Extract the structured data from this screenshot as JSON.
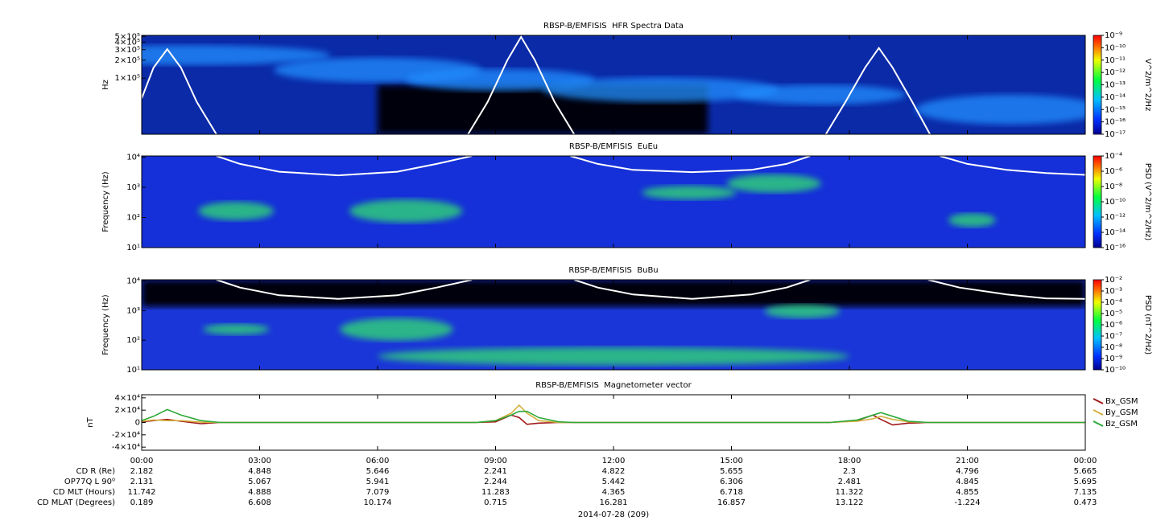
{
  "chart_data": [
    {
      "type": "spectrogram",
      "title": "RBSP-B/EMFISIS  HFR Spectra Data",
      "ylabel": "Hz",
      "ylog": true,
      "xlim": [
        0,
        24
      ],
      "ylim": [
        11500,
        520000
      ],
      "yticks": [
        {
          "value": 100000,
          "label": "1×10⁵"
        },
        {
          "value": 200000,
          "label": "2×10⁵"
        },
        {
          "value": 300000,
          "label": "3×10⁵"
        },
        {
          "value": 400000,
          "label": "4×10⁵"
        },
        {
          "value": 500000,
          "label": "5×10⁵"
        }
      ],
      "zlabel": "V^2/m^2/Hz",
      "zlim": [
        1e-17,
        1e-09
      ],
      "zticks": [
        {
          "value": 1e-09,
          "label": "10⁻⁹"
        },
        {
          "value": 1e-10,
          "label": "10⁻¹⁰"
        },
        {
          "value": 1e-11,
          "label": "10⁻¹¹"
        },
        {
          "value": 1e-12,
          "label": "10⁻¹²"
        },
        {
          "value": 1e-13,
          "label": "10⁻¹³"
        },
        {
          "value": 1e-14,
          "label": "10⁻¹⁴"
        },
        {
          "value": 1e-15,
          "label": "10⁻¹⁵"
        },
        {
          "value": 1e-16,
          "label": "10⁻¹⁶"
        },
        {
          "value": 1e-17,
          "label": "10⁻¹⁷"
        }
      ],
      "curve": {
        "color": "#ffffff",
        "x": [
          0,
          0.3,
          0.65,
          1.0,
          1.4,
          1.9,
          4,
          8.3,
          8.8,
          9.3,
          9.65,
          10.0,
          10.5,
          11.0,
          14,
          17.4,
          17.9,
          18.4,
          18.75,
          19.1,
          19.6,
          20.05
        ],
        "values": [
          46000,
          150000,
          305000,
          150000,
          40000,
          11500,
          null,
          11500,
          40000,
          200000,
          490000,
          200000,
          40000,
          11500,
          null,
          11500,
          40000,
          150000,
          320000,
          150000,
          40000,
          11500
        ]
      }
    },
    {
      "type": "spectrogram",
      "title": "RBSP-B/EMFISIS  EuEu",
      "ylabel": "Frequency (Hz)",
      "ylog": true,
      "xlim": [
        0,
        24
      ],
      "ylim": [
        10,
        11000
      ],
      "yticks": [
        {
          "value": 10,
          "label": "10¹"
        },
        {
          "value": 100,
          "label": "10²"
        },
        {
          "value": 1000,
          "label": "10³"
        },
        {
          "value": 10000,
          "label": "10⁴"
        }
      ],
      "zlabel": "PSD (V^2/m^2/Hz)",
      "zlim": [
        1e-16,
        0.0001
      ],
      "zticks": [
        {
          "value": 0.0001,
          "label": "10⁻⁴"
        },
        {
          "value": 1e-06,
          "label": "10⁻⁶"
        },
        {
          "value": 1e-08,
          "label": "10⁻⁸"
        },
        {
          "value": 1e-10,
          "label": "10⁻¹⁰"
        },
        {
          "value": 1e-12,
          "label": "10⁻¹²"
        },
        {
          "value": 1e-14,
          "label": "10⁻¹⁴"
        },
        {
          "value": 1e-16,
          "label": "10⁻¹⁶"
        }
      ],
      "curve": {
        "color": "#ffffff",
        "x": [
          1.9,
          2.5,
          3.5,
          5,
          6.5,
          7.5,
          8.4,
          9.5,
          10.9,
          11.6,
          12.5,
          14,
          15.5,
          16.4,
          17.0,
          19,
          20.3,
          21,
          22,
          23,
          24
        ],
        "values": [
          11000,
          6000,
          3300,
          2500,
          3300,
          6000,
          11000,
          null,
          11000,
          6000,
          3800,
          3200,
          3800,
          6000,
          11000,
          null,
          11000,
          6000,
          3800,
          3000,
          2600
        ]
      }
    },
    {
      "type": "spectrogram",
      "title": "RBSP-B/EMFISIS  BuBu",
      "ylabel": "Frequency (Hz)",
      "ylog": true,
      "xlim": [
        0,
        24
      ],
      "ylim": [
        10,
        11000
      ],
      "yticks": [
        {
          "value": 10,
          "label": "10¹"
        },
        {
          "value": 100,
          "label": "10²"
        },
        {
          "value": 1000,
          "label": "10³"
        },
        {
          "value": 10000,
          "label": "10⁴"
        }
      ],
      "zlabel": "PSD (nT^2/Hz)",
      "zlim": [
        1e-10,
        0.01
      ],
      "zticks": [
        {
          "value": 0.01,
          "label": "10⁻²"
        },
        {
          "value": 0.001,
          "label": "10⁻³"
        },
        {
          "value": 0.0001,
          "label": "10⁻⁴"
        },
        {
          "value": 1e-05,
          "label": "10⁻⁵"
        },
        {
          "value": 1e-06,
          "label": "10⁻⁶"
        },
        {
          "value": 1e-07,
          "label": "10⁻⁷"
        },
        {
          "value": 1e-08,
          "label": "10⁻⁸"
        },
        {
          "value": 1e-09,
          "label": "10⁻⁹"
        },
        {
          "value": 1e-10,
          "label": "10⁻¹⁰"
        }
      ],
      "curve": {
        "color": "#ffffff",
        "x": [
          1.9,
          2.5,
          3.5,
          5,
          6.5,
          7.5,
          8.4,
          9.5,
          11.0,
          11.6,
          12.5,
          14,
          15.5,
          16.4,
          17.0,
          19,
          20.0,
          20.8,
          22,
          23,
          24
        ],
        "values": [
          11000,
          6000,
          3300,
          2500,
          3300,
          6000,
          11000,
          null,
          11000,
          6000,
          3500,
          2500,
          3500,
          6000,
          11000,
          null,
          11000,
          6000,
          3500,
          2600,
          2500
        ]
      }
    },
    {
      "type": "line",
      "title": "RBSP-B/EMFISIS  Magnetometer vector",
      "ylabel": "nT",
      "xlim": [
        0,
        24
      ],
      "ylim": [
        -45000,
        45000
      ],
      "yticks": [
        {
          "value": 40000,
          "label": "4×10⁴"
        },
        {
          "value": 20000,
          "label": "2×10⁴"
        },
        0,
        {
          "value": -20000,
          "label": "-2×10⁴"
        },
        {
          "value": -40000,
          "label": "-4×10⁴"
        }
      ],
      "xticks": [
        {
          "value": 0,
          "label": "00:00"
        },
        {
          "value": 3,
          "label": "03:00"
        },
        {
          "value": 6,
          "label": "06:00"
        },
        {
          "value": 9,
          "label": "09:00"
        },
        {
          "value": 12,
          "label": "12:00"
        },
        {
          "value": 15,
          "label": "15:00"
        },
        {
          "value": 18,
          "label": "18:00"
        },
        {
          "value": 21,
          "label": "21:00"
        },
        {
          "value": 24,
          "label": "00:00"
        }
      ],
      "xlabel": "2014-07-28 (209)",
      "x": [
        0,
        0.3,
        0.65,
        1.0,
        1.5,
        2.0,
        8.5,
        9.0,
        9.4,
        9.6,
        9.8,
        10.1,
        10.6,
        11.0,
        17.5,
        18.2,
        18.6,
        18.8,
        19.1,
        19.5,
        20.0,
        24
      ],
      "series": [
        {
          "name": "Bx_GSM",
          "color": "#a01818",
          "values": [
            1000,
            3000,
            5000,
            2000,
            -2000,
            0,
            0,
            1000,
            12000,
            8000,
            -3000,
            -1000,
            0,
            0,
            0,
            3000,
            12000,
            5000,
            -4000,
            -1000,
            0,
            0
          ]
        },
        {
          "name": "By_GSM",
          "color": "#d4b040",
          "values": [
            2000,
            4000,
            3000,
            3000,
            500,
            0,
            0,
            3000,
            15000,
            28000,
            15000,
            3000,
            0,
            0,
            0,
            2000,
            6000,
            10000,
            5000,
            1000,
            0,
            0
          ]
        },
        {
          "name": "Bz_GSM",
          "color": "#2eaa3a",
          "values": [
            3000,
            10000,
            21000,
            12000,
            3000,
            0,
            0,
            3000,
            12000,
            18000,
            18000,
            8000,
            1000,
            0,
            0,
            4000,
            12000,
            16000,
            10000,
            2000,
            0,
            0
          ]
        }
      ],
      "ephemeris": [
        {
          "label": "CD R (Re)",
          "values": [
            2.182,
            4.848,
            5.646,
            2.241,
            4.822,
            5.655,
            2.3,
            4.796,
            5.665
          ]
        },
        {
          "label": "OP77Q L 90⁰",
          "values": [
            2.131,
            5.067,
            5.941,
            2.244,
            5.442,
            6.306,
            2.481,
            4.845,
            5.695
          ]
        },
        {
          "label": "CD MLT (Hours)",
          "values": [
            11.742,
            4.888,
            7.079,
            11.283,
            4.365,
            6.718,
            11.322,
            4.855,
            7.135
          ]
        },
        {
          "label": "CD MLAT (Degrees)",
          "values": [
            0.189,
            6.608,
            10.174,
            0.715,
            16.281,
            16.857,
            13.122,
            -1.224,
            0.473
          ]
        }
      ]
    }
  ]
}
